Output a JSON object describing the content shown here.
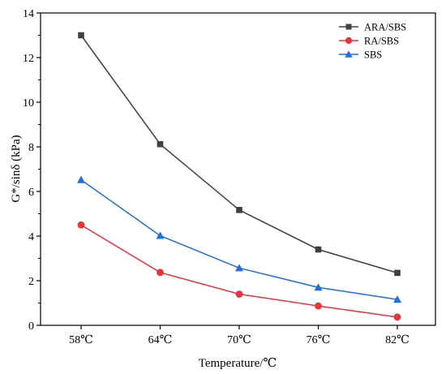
{
  "chart_data": {
    "type": "line",
    "title": "",
    "xlabel": "Temperature/℃",
    "ylabel": "G*/sinδ (kPa)",
    "categories": [
      "58℃",
      "64℃",
      "70℃",
      "76℃",
      "82℃"
    ],
    "ylim": [
      0,
      14
    ],
    "yticks": [
      0,
      2,
      4,
      6,
      8,
      10,
      12,
      14
    ],
    "grid": false,
    "legend_position": "top-right",
    "series": [
      {
        "name": "ARA/SBS",
        "color": "#3f3f3f",
        "marker": "square",
        "values": [
          13.0,
          8.12,
          5.17,
          3.4,
          2.35
        ]
      },
      {
        "name": "RA/SBS",
        "color": "#e8333a",
        "marker": "circle",
        "values": [
          4.5,
          2.37,
          1.4,
          0.87,
          0.37
        ]
      },
      {
        "name": "SBS",
        "color": "#1f6fe0",
        "marker": "triangle",
        "values": [
          6.52,
          4.02,
          2.57,
          1.7,
          1.16
        ]
      }
    ]
  }
}
